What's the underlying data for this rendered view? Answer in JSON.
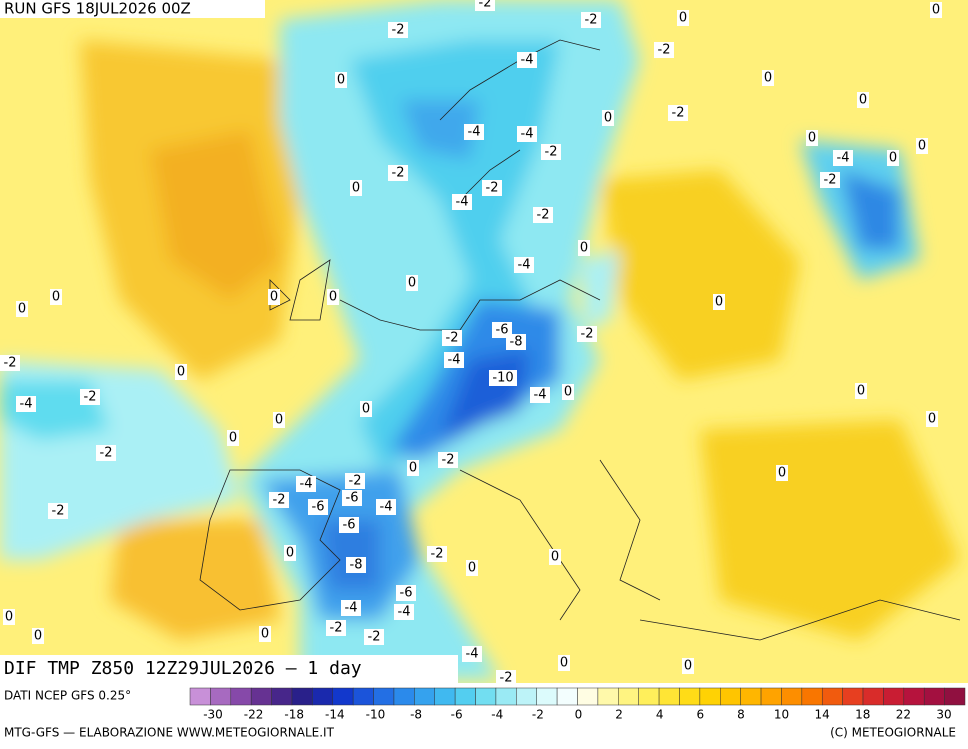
{
  "header": {
    "run": "RUN GFS 18JUL2026 00Z"
  },
  "map": {
    "title": "DIF TMP Z850 12Z29JUL2026 — 1 day",
    "contour_labels": [
      -2,
      -2,
      0,
      0,
      -2,
      -2,
      -4,
      0,
      0,
      -2,
      0,
      0,
      -4,
      -4,
      0,
      -2,
      -4,
      0,
      0,
      -2,
      0,
      -2,
      -2,
      -4,
      -2,
      -4,
      0,
      0,
      0,
      0,
      0,
      0,
      0,
      -6,
      -8,
      -2,
      -2,
      -2,
      -4,
      0,
      -10,
      -2,
      -4,
      -4,
      0,
      0,
      0,
      0,
      0,
      0,
      -2,
      -2,
      0,
      -2,
      0,
      -4,
      -6,
      -2,
      -4,
      -6,
      -2,
      -6,
      0,
      -2,
      0,
      -8,
      0,
      -6,
      -4,
      -4,
      0,
      -2,
      -2,
      0,
      0,
      -4,
      0,
      0,
      -2
    ]
  },
  "footer": {
    "source": "DATI NCEP GFS 0.25°",
    "credit": "MTG-GFS — ELABORAZIONE WWW.METEOGIORNALE.IT",
    "copyright": "(C) METEOGIORNALE"
  },
  "colorbar": {
    "ticks": [
      -30,
      -22,
      -18,
      -14,
      -10,
      -8,
      -6,
      -4,
      -2,
      0,
      2,
      4,
      6,
      8,
      10,
      14,
      18,
      22,
      30
    ]
  }
}
